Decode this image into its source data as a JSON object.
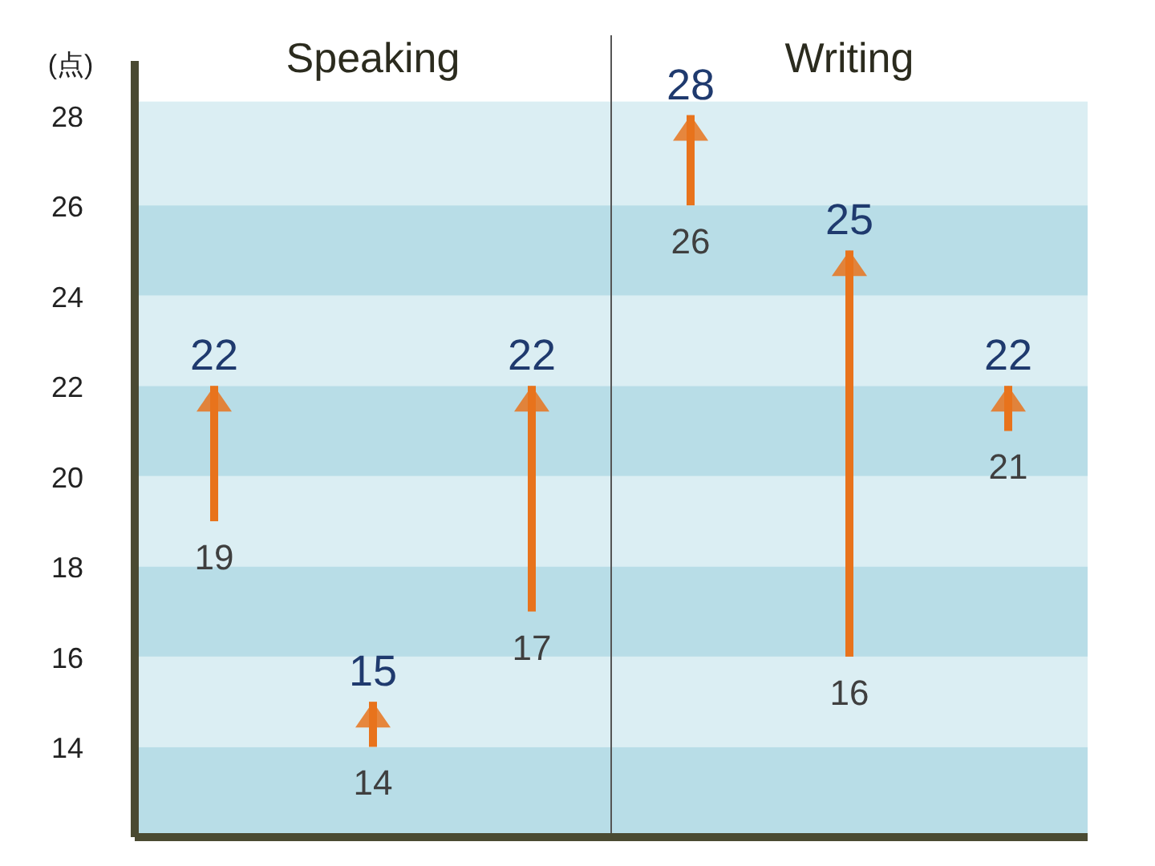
{
  "chart_data": {
    "type": "bar",
    "ylabel": "(点)",
    "categories": [
      null,
      null,
      null,
      null,
      null,
      null
    ],
    "base": [
      19,
      14,
      17,
      26,
      16,
      21
    ],
    "values": [
      3,
      1,
      5,
      2,
      9,
      1
    ],
    "color": "#e8731c",
    "ylim": [
      12,
      29.2
    ],
    "yticks": [
      14,
      16,
      18,
      20,
      22,
      24,
      26,
      28
    ],
    "grid": false,
    "bands": [
      {
        "axis": "y",
        "from": 12,
        "to": 14,
        "color": "#b8dde7"
      },
      {
        "axis": "y",
        "from": 14,
        "to": 16,
        "color": "#dbeef3"
      },
      {
        "axis": "y",
        "from": 16,
        "to": 18,
        "color": "#b8dde7"
      },
      {
        "axis": "y",
        "from": 18,
        "to": 20,
        "color": "#dbeef3"
      },
      {
        "axis": "y",
        "from": 20,
        "to": 22,
        "color": "#b8dde7"
      },
      {
        "axis": "y",
        "from": 22,
        "to": 24,
        "color": "#dbeef3"
      },
      {
        "axis": "y",
        "from": 24,
        "to": 26,
        "color": "#b8dde7"
      },
      {
        "axis": "y",
        "from": 26,
        "to": 28.3,
        "color": "#dbeef3"
      }
    ],
    "annotations": [
      "Speaking",
      "Writing",
      "22",
      "19",
      "15",
      "14",
      "22",
      "17",
      "28",
      "26",
      "25",
      "16",
      "22",
      "21"
    ]
  }
}
